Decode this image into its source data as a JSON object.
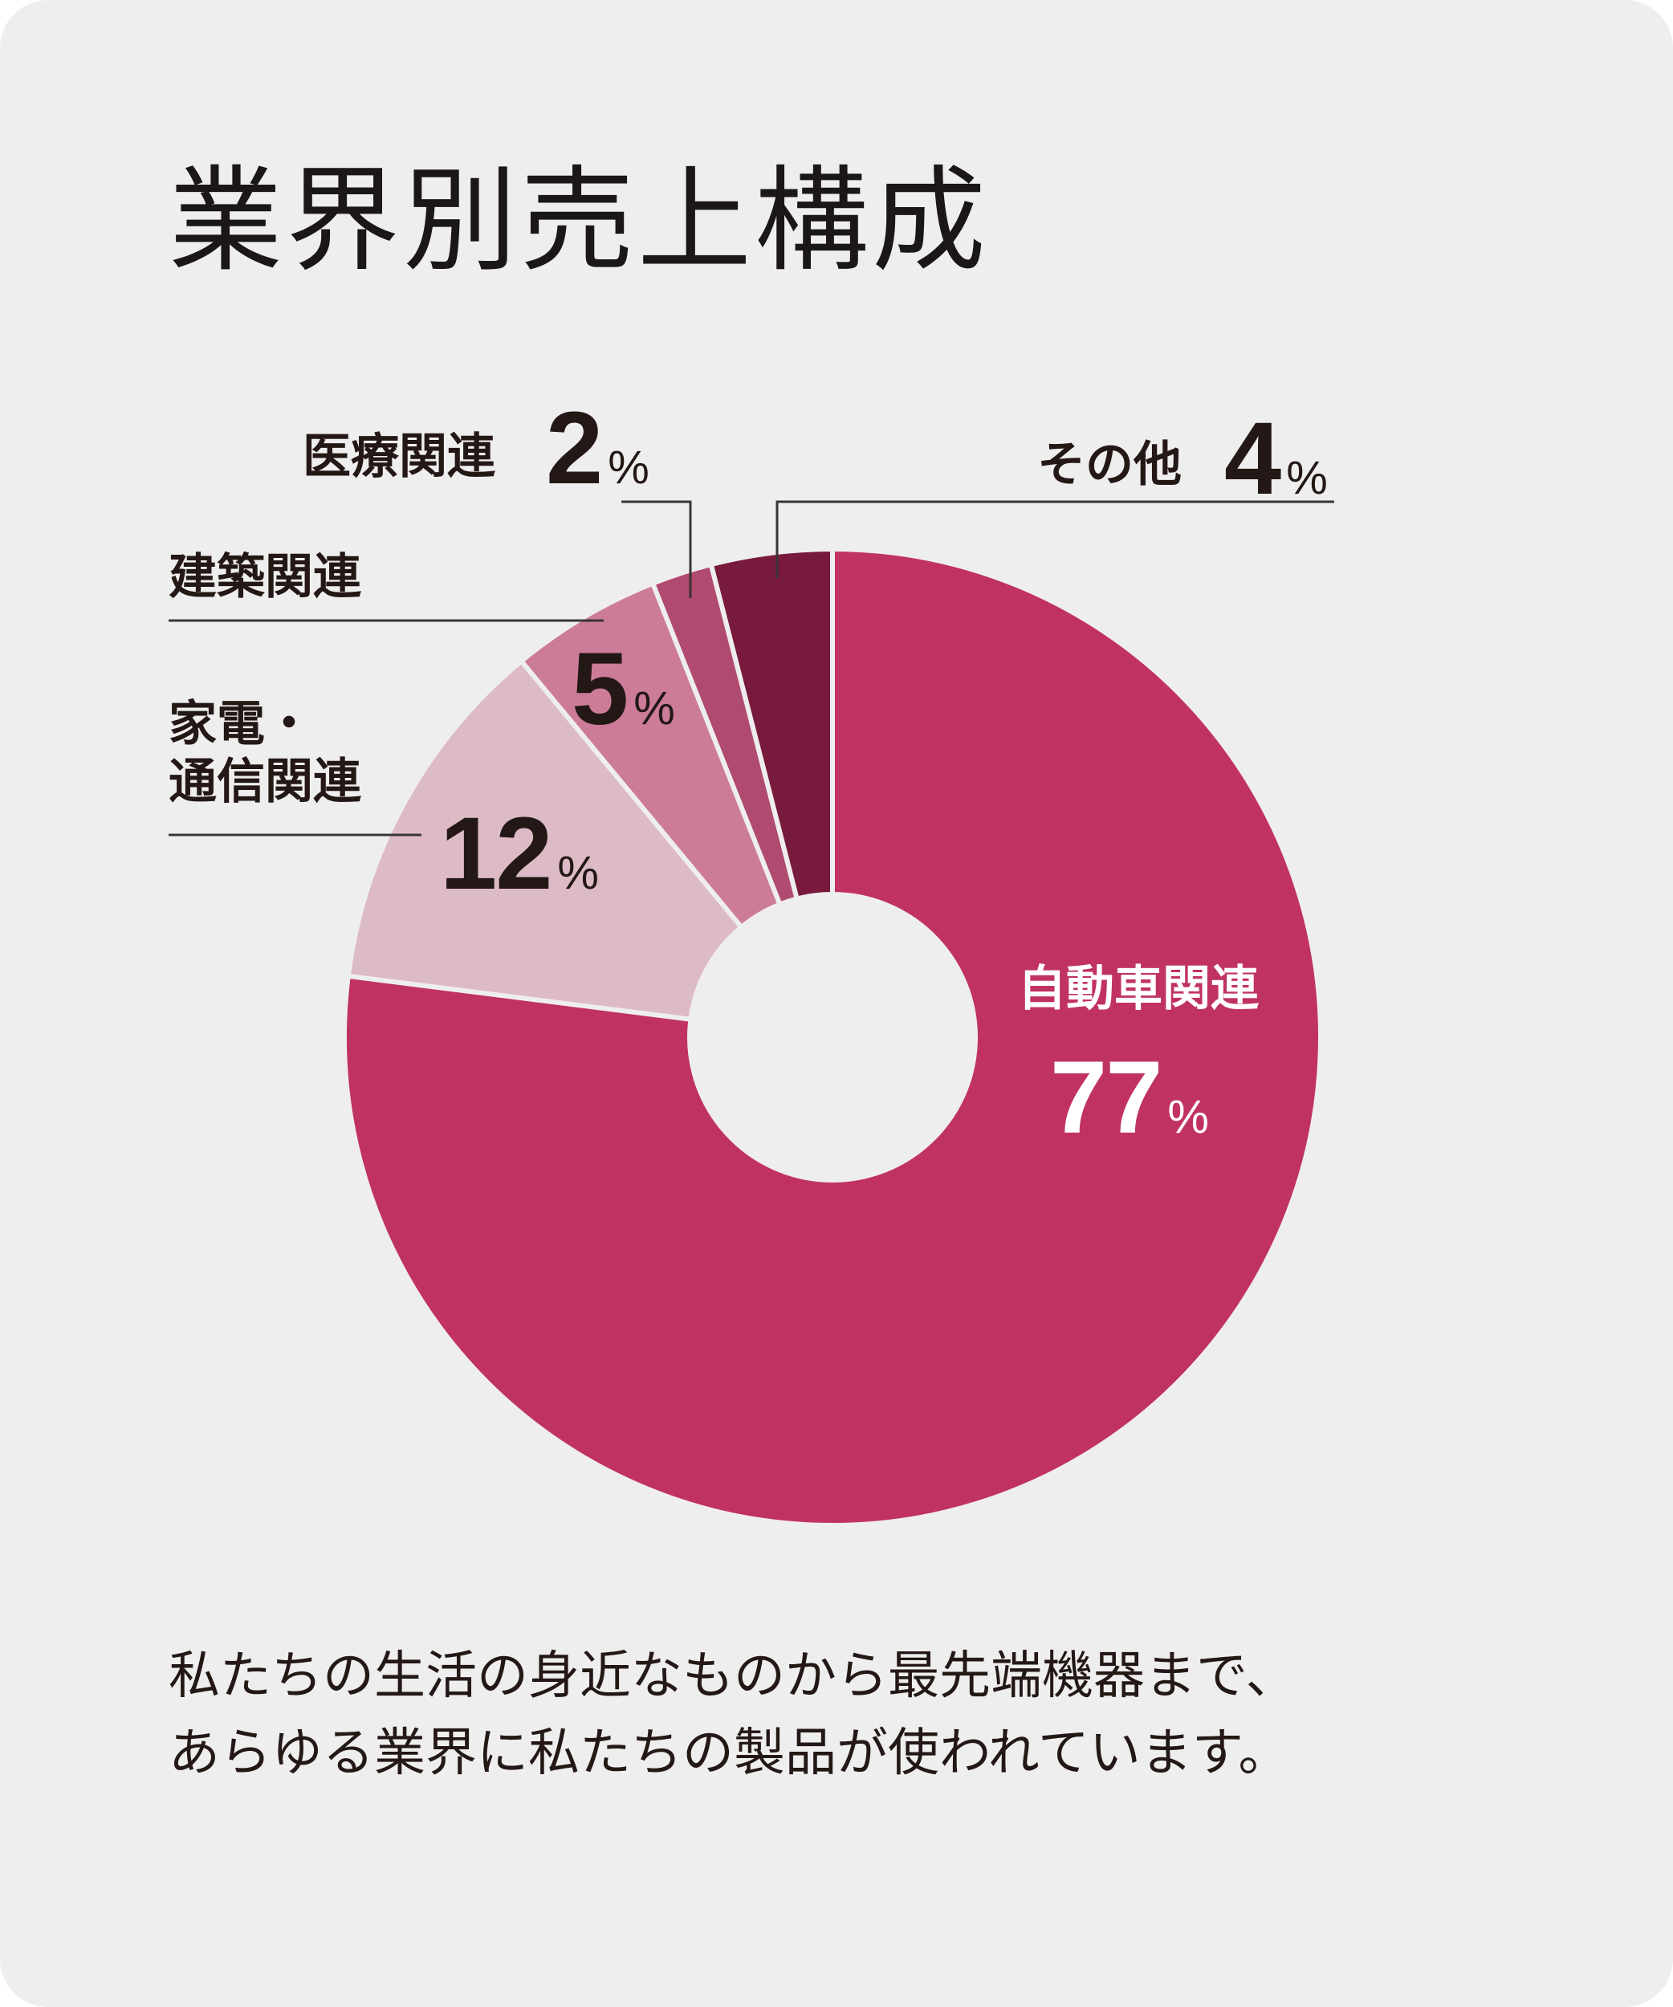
{
  "title": "業界別売上構成",
  "chart_data": {
    "type": "pie",
    "donut": true,
    "unit": "%",
    "categories": [
      "自動車関連",
      "家電・通信関連",
      "建築関連",
      "医療関連",
      "その他"
    ],
    "values": [
      77,
      12,
      5,
      2,
      4
    ],
    "colors": [
      "#c03360",
      "#ddbbc6",
      "#cc7c99",
      "#b04a70",
      "#781a3d"
    ]
  },
  "labels": {
    "auto": {
      "name": "自動車関連",
      "value": "77",
      "unit": "%"
    },
    "appliance": {
      "name_line1": "家電・",
      "name_line2": "通信関連",
      "value": "12",
      "unit": "%"
    },
    "construction": {
      "name": "建築関連",
      "value": "5",
      "unit": "%"
    },
    "medical": {
      "name": "医療関連",
      "value": "2",
      "unit": "%"
    },
    "other": {
      "name": "その他",
      "value": "4",
      "unit": "%"
    }
  },
  "caption": {
    "line1": "私たちの生活の身近なものから最先端機器まで、",
    "line2": "あらゆる業界に私たちの製品が使われています。"
  }
}
